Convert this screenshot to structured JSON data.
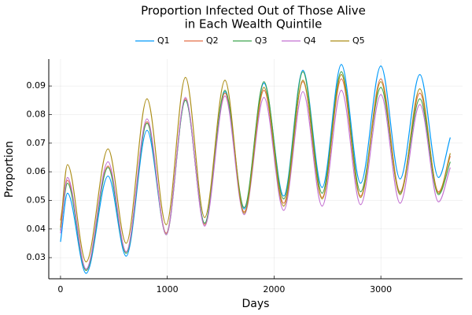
{
  "chart_data": {
    "type": "line",
    "title": [
      "Proportion Infected Out of Those Alive",
      "in Each Wealth Quintile"
    ],
    "x_label": "Days",
    "y_label": "Proportion",
    "x": [
      0,
      65,
      240,
      445,
      615,
      810,
      990,
      1170,
      1350,
      1540,
      1720,
      1905,
      2090,
      2270,
      2450,
      2630,
      2810,
      3000,
      3180,
      3365,
      3540,
      3650
    ],
    "series": [
      {
        "name": "Q1",
        "color": "#009afa",
        "values": [
          0.0355,
          0.0525,
          0.0245,
          0.0585,
          0.0305,
          0.0745,
          0.0385,
          0.085,
          0.042,
          0.088,
          0.047,
          0.091,
          0.0515,
          0.0955,
          0.0545,
          0.0975,
          0.056,
          0.097,
          0.0575,
          0.094,
          0.058,
          0.072
        ]
      },
      {
        "name": "Q2",
        "color": "#e36f47",
        "values": [
          0.043,
          0.057,
          0.0255,
          0.062,
          0.032,
          0.0775,
          0.0385,
          0.0855,
          0.0415,
          0.0875,
          0.046,
          0.0885,
          0.049,
          0.0915,
          0.051,
          0.0925,
          0.0515,
          0.0925,
          0.053,
          0.0875,
          0.053,
          0.0655
        ]
      },
      {
        "name": "Q3",
        "color": "#3ea44e",
        "values": [
          0.0395,
          0.056,
          0.0255,
          0.0615,
          0.0315,
          0.077,
          0.038,
          0.085,
          0.042,
          0.0885,
          0.0475,
          0.0915,
          0.0505,
          0.095,
          0.0525,
          0.095,
          0.053,
          0.0895,
          0.0525,
          0.0855,
          0.052,
          0.0635
        ]
      },
      {
        "name": "Q4",
        "color": "#c371d2",
        "values": [
          0.0385,
          0.058,
          0.026,
          0.0635,
          0.032,
          0.0785,
          0.038,
          0.086,
          0.041,
          0.0865,
          0.045,
          0.086,
          0.0465,
          0.088,
          0.048,
          0.0885,
          0.0485,
          0.087,
          0.049,
          0.0835,
          0.0495,
          0.0615
        ]
      },
      {
        "name": "Q5",
        "color": "#ac8e18",
        "values": [
          0.0405,
          0.0625,
          0.0285,
          0.068,
          0.035,
          0.0855,
          0.0415,
          0.093,
          0.044,
          0.092,
          0.0455,
          0.0895,
          0.048,
          0.092,
          0.0505,
          0.094,
          0.051,
          0.0915,
          0.052,
          0.089,
          0.0525,
          0.0665
        ]
      }
    ],
    "xlim": [
      -110,
      3765
    ],
    "xticks": [
      0,
      1000,
      2000,
      3000
    ],
    "ylim": [
      0.0226,
      0.0994
    ],
    "yticks": [
      0.03,
      0.04,
      0.05,
      0.06,
      0.07,
      0.08,
      0.09
    ],
    "grid": true,
    "legend": "top"
  }
}
